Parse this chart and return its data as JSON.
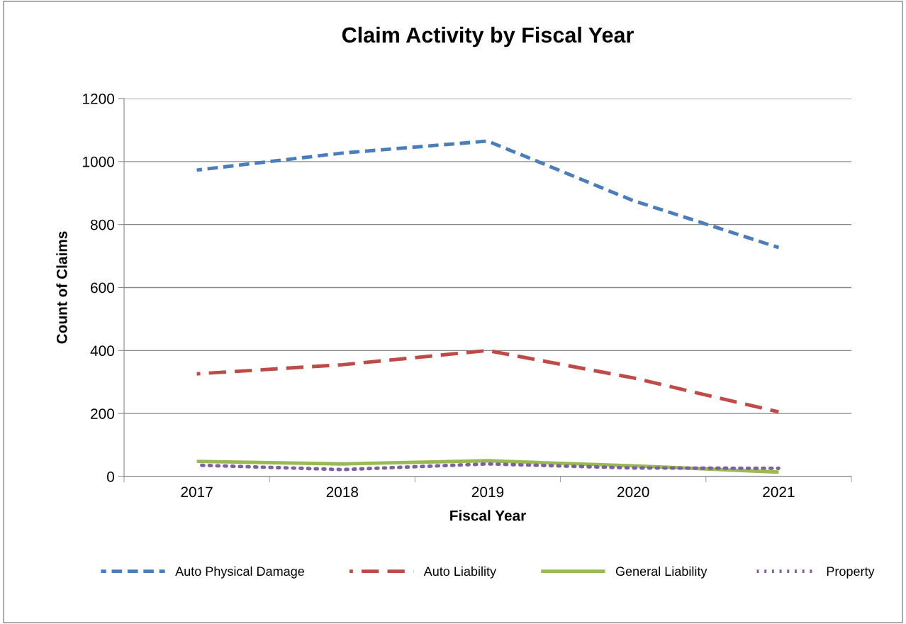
{
  "chart_data": {
    "type": "line",
    "title": "Claim Activity by Fiscal Year",
    "xlabel": "Fiscal Year",
    "ylabel": "Count of Claims",
    "categories": [
      "2017",
      "2018",
      "2019",
      "2020",
      "2021"
    ],
    "series": [
      {
        "name": "Auto Physical Damage",
        "color": "#4a7ebb",
        "line_style": "dashed",
        "values": [
          973,
          1027,
          1065,
          876,
          727
        ]
      },
      {
        "name": "Auto Liability",
        "color": "#be4b48",
        "line_style": "dashed",
        "values": [
          326,
          355,
          400,
          313,
          205
        ]
      },
      {
        "name": "General Liability",
        "color": "#98b954",
        "line_style": "solid",
        "values": [
          48,
          40,
          50,
          34,
          14
        ]
      },
      {
        "name": "Property",
        "color": "#7d60a0",
        "line_style": "dotted",
        "values": [
          36,
          22,
          40,
          27,
          26
        ]
      }
    ],
    "ylim": [
      0,
      1200
    ],
    "yticks": [
      0,
      200,
      400,
      600,
      800,
      1000,
      1200
    ],
    "grid": "y",
    "legend": "bottom",
    "marker": "none"
  }
}
